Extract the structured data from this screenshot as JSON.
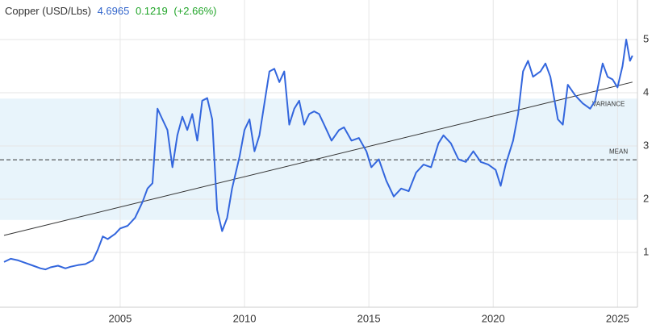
{
  "chart_data": {
    "type": "line",
    "price": 4.6965,
    "change": 0.1219,
    "change_pct": "(+2.66%)",
    "x": [
      2000.33,
      2000.6,
      2000.9,
      2001.2,
      2001.5,
      2001.8,
      2002.0,
      2002.2,
      2002.5,
      2002.8,
      2003.0,
      2003.3,
      2003.6,
      2003.9,
      2004.1,
      2004.3,
      2004.5,
      2004.8,
      2005.0,
      2005.3,
      2005.6,
      2005.9,
      2006.1,
      2006.3,
      2006.5,
      2006.7,
      2006.9,
      2007.1,
      2007.3,
      2007.5,
      2007.7,
      2007.9,
      2008.1,
      2008.3,
      2008.5,
      2008.7,
      2008.9,
      2009.1,
      2009.3,
      2009.5,
      2009.8,
      2010.0,
      2010.2,
      2010.4,
      2010.6,
      2010.8,
      2011.0,
      2011.2,
      2011.4,
      2011.6,
      2011.8,
      2012.0,
      2012.2,
      2012.4,
      2012.6,
      2012.8,
      2013.0,
      2013.2,
      2013.5,
      2013.8,
      2014.0,
      2014.3,
      2014.6,
      2014.9,
      2015.1,
      2015.4,
      2015.7,
      2016.0,
      2016.3,
      2016.6,
      2016.9,
      2017.2,
      2017.5,
      2017.8,
      2018.0,
      2018.3,
      2018.6,
      2018.9,
      2019.2,
      2019.5,
      2019.8,
      2020.1,
      2020.3,
      2020.5,
      2020.8,
      2021.0,
      2021.2,
      2021.4,
      2021.6,
      2021.9,
      2022.1,
      2022.3,
      2022.6,
      2022.8,
      2023.0,
      2023.3,
      2023.6,
      2023.9,
      2024.1,
      2024.4,
      2024.6,
      2024.8,
      2025.0,
      2025.2,
      2025.35,
      2025.5,
      2025.6
    ],
    "series": [
      {
        "name": "Copper (USD/Lbs)",
        "color": "#3366dd",
        "values": [
          0.82,
          0.88,
          0.85,
          0.8,
          0.75,
          0.7,
          0.68,
          0.72,
          0.75,
          0.7,
          0.73,
          0.76,
          0.78,
          0.85,
          1.05,
          1.3,
          1.25,
          1.35,
          1.45,
          1.5,
          1.65,
          1.95,
          2.2,
          2.3,
          3.7,
          3.5,
          3.3,
          2.6,
          3.2,
          3.55,
          3.3,
          3.6,
          3.1,
          3.85,
          3.9,
          3.5,
          1.8,
          1.4,
          1.65,
          2.2,
          2.8,
          3.3,
          3.5,
          2.9,
          3.2,
          3.8,
          4.4,
          4.45,
          4.2,
          4.4,
          3.4,
          3.7,
          3.85,
          3.4,
          3.6,
          3.65,
          3.6,
          3.4,
          3.1,
          3.3,
          3.35,
          3.1,
          3.15,
          2.9,
          2.6,
          2.75,
          2.35,
          2.05,
          2.2,
          2.15,
          2.5,
          2.65,
          2.6,
          3.05,
          3.2,
          3.05,
          2.75,
          2.7,
          2.9,
          2.7,
          2.65,
          2.55,
          2.25,
          2.65,
          3.1,
          3.6,
          4.4,
          4.6,
          4.3,
          4.4,
          4.55,
          4.3,
          3.5,
          3.4,
          4.15,
          3.95,
          3.8,
          3.7,
          3.85,
          4.55,
          4.3,
          4.25,
          4.1,
          4.5,
          5.0,
          4.6,
          4.6965
        ]
      }
    ],
    "trend": {
      "x": [
        2000.33,
        2025.6
      ],
      "values": [
        1.32,
        4.2
      ]
    },
    "variance_band": [
      1.61,
      3.89
    ],
    "mean": 2.74,
    "annotations": {
      "variance": "VARIANCE",
      "mean": "MEAN"
    },
    "xlim": [
      2000.33,
      2025.8
    ],
    "xticks": [
      2005,
      2010,
      2015,
      2020,
      2025
    ],
    "ylim": [
      0,
      5.5
    ],
    "yticks": [
      1,
      2,
      3,
      4,
      5
    ],
    "grid": true
  }
}
